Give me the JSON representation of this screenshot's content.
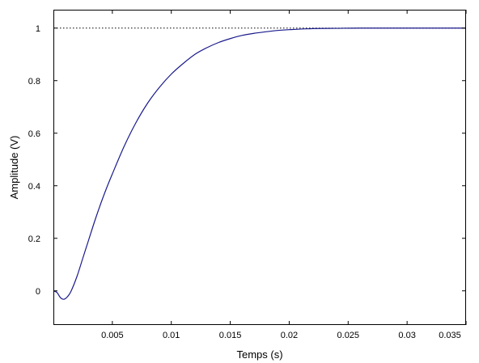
{
  "chart_data": {
    "type": "line",
    "title": "",
    "xlabel": "Temps (s)",
    "ylabel": "Amplitude (V)",
    "xlim": [
      0,
      0.035
    ],
    "ylim": [
      -0.13,
      1.07
    ],
    "grid": false,
    "x_ticks": [
      {
        "value": 0.005,
        "label": "0.005"
      },
      {
        "value": 0.01,
        "label": "0.01"
      },
      {
        "value": 0.015,
        "label": "0.015"
      },
      {
        "value": 0.02,
        "label": "0.02"
      },
      {
        "value": 0.025,
        "label": "0.025"
      },
      {
        "value": 0.03,
        "label": "0.03"
      },
      {
        "value": 0.035,
        "label": "0.035"
      }
    ],
    "y_ticks": [
      {
        "value": 0,
        "label": "0"
      },
      {
        "value": 0.2,
        "label": "0.2"
      },
      {
        "value": 0.4,
        "label": "0.4"
      },
      {
        "value": 0.6,
        "label": "0.6"
      },
      {
        "value": 0.8,
        "label": "0.8"
      },
      {
        "value": 1,
        "label": "1"
      }
    ],
    "reference_line": {
      "y": 1,
      "style": "dotted",
      "color": "#000000"
    },
    "series": [
      {
        "color": "#1a1a8c",
        "points": [
          [
            0,
            0.0
          ],
          [
            0.0003,
            -0.006
          ],
          [
            0.0006,
            -0.026
          ],
          [
            0.0009,
            -0.032
          ],
          [
            0.0012,
            -0.022
          ],
          [
            0.0015,
            -0.001
          ],
          [
            0.002,
            0.055
          ],
          [
            0.0025,
            0.125
          ],
          [
            0.003,
            0.195
          ],
          [
            0.0035,
            0.265
          ],
          [
            0.004,
            0.33
          ],
          [
            0.0045,
            0.39
          ],
          [
            0.005,
            0.445
          ],
          [
            0.006,
            0.55
          ],
          [
            0.007,
            0.64
          ],
          [
            0.008,
            0.715
          ],
          [
            0.009,
            0.775
          ],
          [
            0.01,
            0.825
          ],
          [
            0.011,
            0.865
          ],
          [
            0.012,
            0.9
          ],
          [
            0.013,
            0.925
          ],
          [
            0.014,
            0.945
          ],
          [
            0.015,
            0.96
          ],
          [
            0.016,
            0.972
          ],
          [
            0.017,
            0.98
          ],
          [
            0.018,
            0.986
          ],
          [
            0.019,
            0.991
          ],
          [
            0.02,
            0.994
          ],
          [
            0.022,
            0.998
          ],
          [
            0.024,
            0.999
          ],
          [
            0.026,
            1.0
          ],
          [
            0.03,
            1.0
          ],
          [
            0.035,
            1.0
          ]
        ]
      }
    ]
  }
}
